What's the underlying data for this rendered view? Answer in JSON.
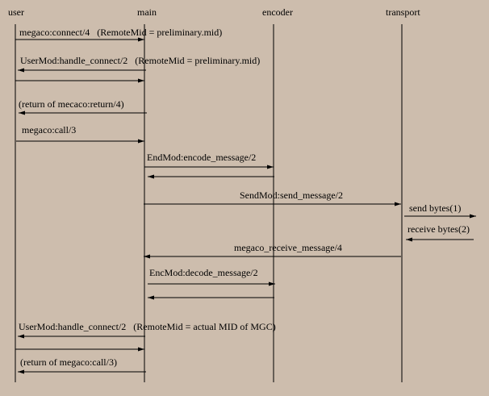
{
  "participants": [
    "user",
    "main",
    "encoder",
    "transport"
  ],
  "messages": [
    {
      "from": "user",
      "to": "main",
      "label": "megaco:connect/4   (RemoteMid = preliminary.mid)"
    },
    {
      "from": "main",
      "to": "user",
      "label": "UserMod:handle_connect/2   (RemoteMid = preliminary.mid)"
    },
    {
      "from": "user",
      "to": "main",
      "label": ""
    },
    {
      "from": "main",
      "to": "user",
      "label": "(return of mecaco:return/4)"
    },
    {
      "from": "user",
      "to": "main",
      "label": "megaco:call/3"
    },
    {
      "from": "main",
      "to": "encoder",
      "label": "EndMod:encode_message/2"
    },
    {
      "from": "encoder",
      "to": "main",
      "label": ""
    },
    {
      "from": "main",
      "to": "transport",
      "label": "SendMod:send_message/2"
    },
    {
      "from": "transport",
      "to": "external",
      "label": "send bytes(1)"
    },
    {
      "from": "external",
      "to": "transport",
      "label": "receive bytes(2)"
    },
    {
      "from": "transport",
      "to": "main",
      "label": "megaco_receive_message/4"
    },
    {
      "from": "main",
      "to": "encoder",
      "label": "EncMod:decode_message/2"
    },
    {
      "from": "encoder",
      "to": "main",
      "label": ""
    },
    {
      "from": "main",
      "to": "user",
      "label": "UserMod:handle_connect/2   (RemoteMid = actual MID of MGC)"
    },
    {
      "from": "user",
      "to": "main",
      "label": ""
    },
    {
      "from": "main",
      "to": "user",
      "label": "(return of megaco:call/3)"
    }
  ]
}
